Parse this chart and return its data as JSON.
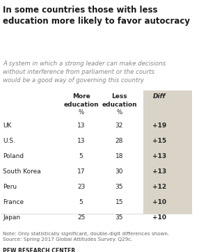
{
  "title": "In some countries those with less\neducation more likely to favor autocracy",
  "subtitle": "A system in which a strong leader can make decisions\nwithout interference from parliament or the courts\nwould be a good way of governing this country",
  "col_headers": [
    "More\neducation",
    "Less\neducation",
    "Diff"
  ],
  "col_subheaders": [
    "%",
    "%",
    ""
  ],
  "countries": [
    "UK",
    "U.S.",
    "Poland",
    "South Korea",
    "Peru",
    "France",
    "Japan"
  ],
  "more_edu": [
    13,
    13,
    5,
    17,
    23,
    5,
    25
  ],
  "less_edu": [
    32,
    28,
    18,
    30,
    35,
    15,
    35
  ],
  "diff": [
    "+19",
    "+15",
    "+13",
    "+13",
    "+12",
    "+10",
    "+10"
  ],
  "note": "Note: Only statistically significant, double-digit differences shown.\nSource: Spring 2017 Global Attitudes Survey. Q29c.",
  "source": "PEW RESEARCH CENTER",
  "bg_color": "#ffffff",
  "diff_col_bg": "#d9d4c7",
  "title_color": "#1a1a1a",
  "subtitle_color": "#888888",
  "text_color": "#222222",
  "note_color": "#666666"
}
